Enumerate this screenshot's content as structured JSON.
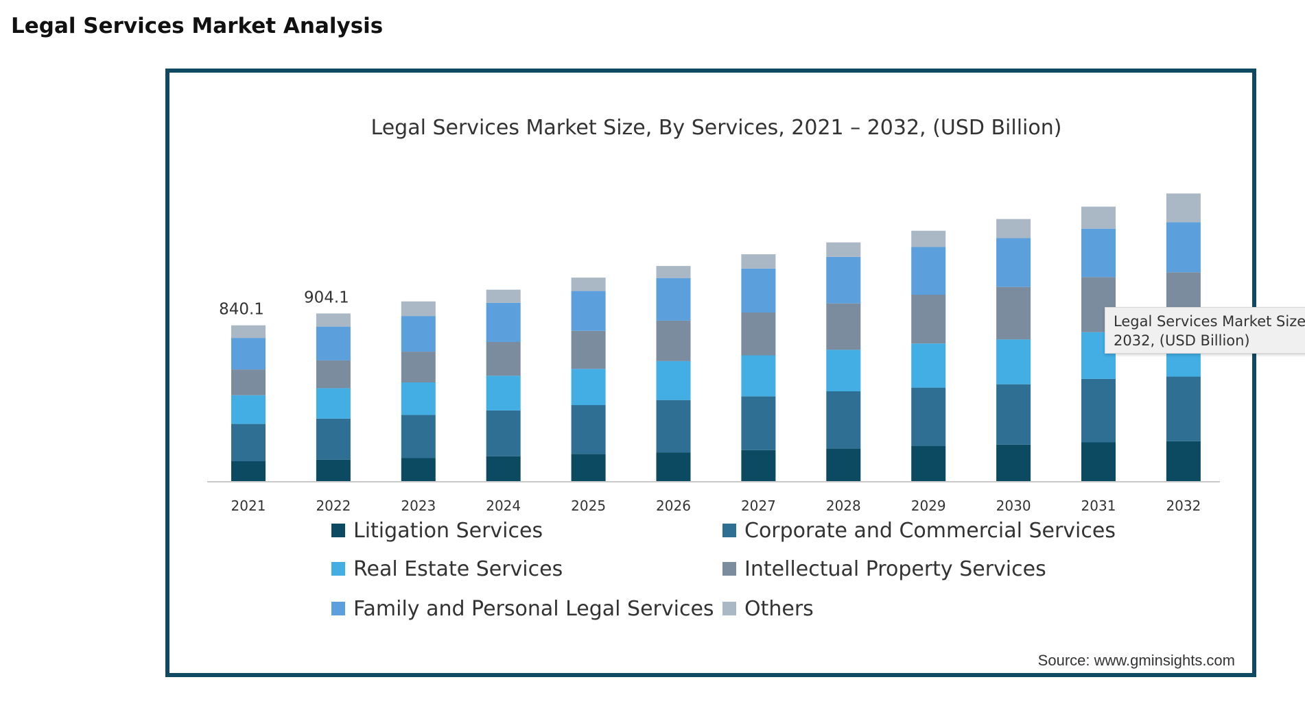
{
  "page": {
    "heading": "Legal Services Market Analysis"
  },
  "chart_data": {
    "type": "bar",
    "stacked": true,
    "title": "Legal Services Market Size, By Services, 2021 – 2032, (USD Billion)",
    "xlabel": "",
    "ylabel": "",
    "categories": [
      "2021",
      "2022",
      "2023",
      "2024",
      "2025",
      "2026",
      "2027",
      "2028",
      "2029",
      "2030",
      "2031",
      "2032"
    ],
    "totals": [
      840.1,
      904.1,
      969,
      1032,
      1097,
      1160,
      1223,
      1287,
      1350,
      1413,
      1480,
      1551
    ],
    "data_labels": [
      "840.1",
      "904.1",
      "",
      "",
      "",
      "",
      "",
      "",
      "",
      "",
      "",
      ""
    ],
    "ylim": [
      0,
      1600
    ],
    "grid": false,
    "legend_position": "bottom",
    "series": [
      {
        "name": "Litigation Services",
        "color": "#0b4a61",
        "values": [
          107,
          115,
          124,
          134,
          146,
          155,
          167,
          175,
          190,
          196,
          209,
          215
        ]
      },
      {
        "name": "Corporate and Commercial Services",
        "color": "#2e6f93",
        "values": [
          201,
          222,
          233,
          247,
          264,
          282,
          290,
          309,
          314,
          326,
          342,
          349
        ]
      },
      {
        "name": "Real Estate Services",
        "color": "#42aee3",
        "values": [
          155,
          164,
          175,
          187,
          195,
          210,
          221,
          224,
          238,
          242,
          252,
          250
        ]
      },
      {
        "name": "Intellectual Property Services",
        "color": "#7a8c9e",
        "values": [
          139,
          150,
          166,
          182,
          205,
          218,
          231,
          250,
          263,
          283,
          297,
          312
        ]
      },
      {
        "name": "Family and Personal Legal Services",
        "color": "#5ba0dc",
        "values": [
          170,
          182,
          192,
          211,
          215,
          230,
          237,
          251,
          257,
          263,
          261,
          270
        ]
      },
      {
        "name": "Others",
        "color": "#aab7c4",
        "values": [
          68,
          71,
          79,
          71,
          72,
          65,
          77,
          78,
          88,
          103,
          119,
          155
        ]
      }
    ],
    "source": "Source: www.gminsights.com",
    "axis_color": "#c9c9c9",
    "tooltip_text": "Legal Services Market Size\n2032, (USD Billion)"
  }
}
